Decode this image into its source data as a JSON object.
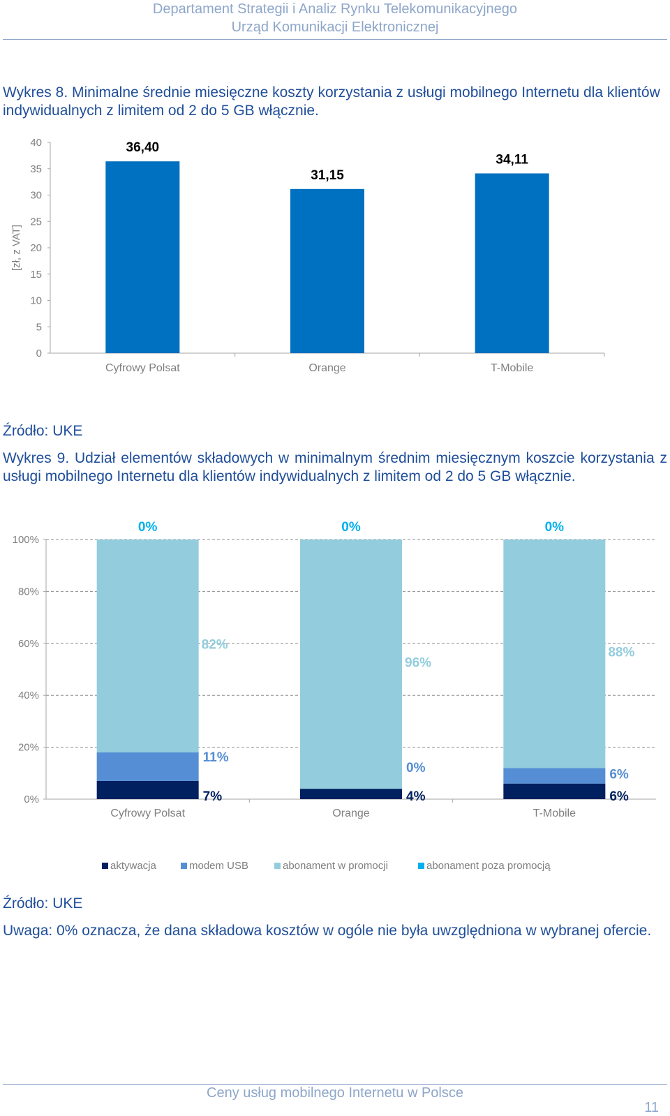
{
  "header": {
    "line1": "Departament Strategii i Analiz Rynku Telekomunikacyjnego",
    "line2": "Urząd Komunikacji Elektronicznej"
  },
  "fig8": {
    "caption": "Wykres 8. Minimalne średnie miesięczne koszty korzystania z usługi mobilnego Internetu dla klientów indywidualnych z limitem od 2 do 5 GB włącznie."
  },
  "source1": "Źródło: UKE",
  "fig9": {
    "caption": "Wykres 9. Udział elementów składowych w minimalnym średnim miesięcznym koszcie korzystania z usługi mobilnego Internetu dla klientów indywidualnych z limitem od 2 do 5 GB włącznie."
  },
  "source2": "Źródło: UKE",
  "note": "Uwaga: 0% oznacza, że dana składowa kosztów w ogóle nie była uwzględniona w wybranej ofercie.",
  "footer": {
    "title": "Ceny usług mobilnego Internetu w Polsce",
    "page": "11"
  },
  "chart_data": [
    {
      "type": "bar",
      "categories": [
        "Cyfrowy Polsat",
        "Orange",
        "T-Mobile"
      ],
      "values": [
        36.4,
        31.15,
        34.11
      ],
      "value_labels": [
        "36,40",
        "31,15",
        "34,11"
      ],
      "ylabel": "[zł, z VAT]",
      "ylim": [
        0,
        40
      ],
      "yticks": [
        "0",
        "5",
        "10",
        "15",
        "20",
        "25",
        "30",
        "35",
        "40"
      ],
      "bar_color": "#0070c0",
      "grid": false
    },
    {
      "type": "bar",
      "stacked": true,
      "categories": [
        "Cyfrowy Polsat",
        "Orange",
        "T-Mobile"
      ],
      "ylim": [
        0,
        100
      ],
      "yticks": [
        "0%",
        "20%",
        "40%",
        "60%",
        "80%",
        "100%"
      ],
      "grid": true,
      "legend_position": "bottom",
      "series": [
        {
          "name": "aktywacja",
          "values": [
            7,
            4,
            6
          ],
          "labels": [
            "7%",
            "4%",
            "6%"
          ],
          "color": "#002060",
          "label_color": "#002060"
        },
        {
          "name": "modem USB",
          "values": [
            11,
            0,
            6
          ],
          "labels": [
            "11%",
            "0%",
            "6%"
          ],
          "color": "#558ed5",
          "label_color": "#558ed5"
        },
        {
          "name": "abonament w promocji",
          "values": [
            82,
            96,
            88
          ],
          "labels": [
            "82%",
            "96%",
            "88%"
          ],
          "color": "#93cddd",
          "label_color": "#93cddd"
        },
        {
          "name": "abonament poza promocją",
          "values": [
            0,
            0,
            0
          ],
          "labels": [
            "0%",
            "0%",
            "0%"
          ],
          "color": "#00b0f0",
          "label_color": "#00b0f0"
        }
      ]
    }
  ]
}
